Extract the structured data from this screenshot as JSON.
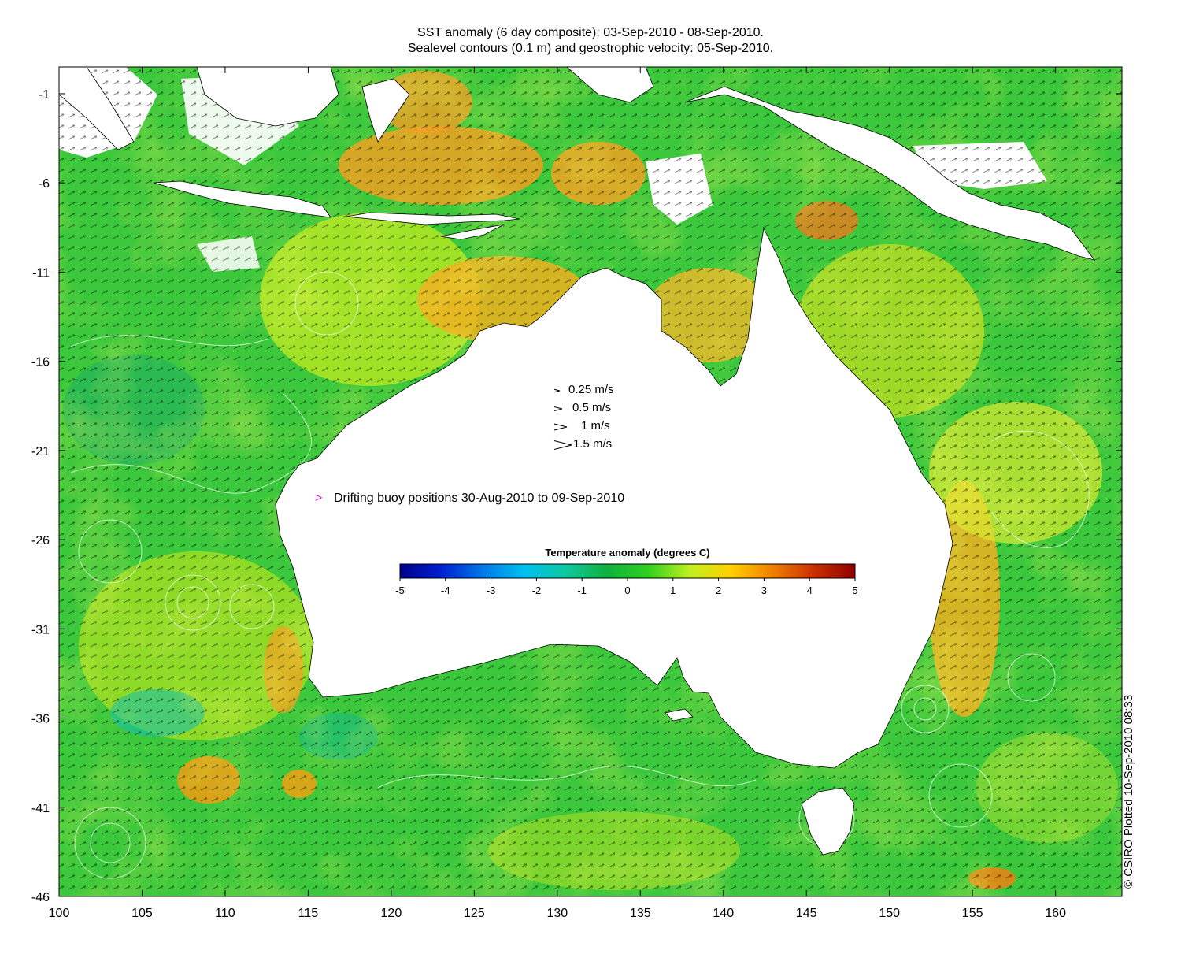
{
  "title": {
    "line1": "SST anomaly (6 day composite): 03-Sep-2010 - 08-Sep-2010.",
    "line2": "Sealevel contours (0.1 m) and geostrophic velocity: 05-Sep-2010."
  },
  "credit": "© CSIRO Plotted 10-Sep-2010 08:33",
  "axes": {
    "lon_ticks": [
      "100",
      "105",
      "110",
      "115",
      "120",
      "125",
      "130",
      "135",
      "140",
      "145",
      "150",
      "155",
      "160"
    ],
    "lat_ticks": [
      "-1",
      "-6",
      "-11",
      "-16",
      "-21",
      "-26",
      "-31",
      "-36",
      "-41",
      "-46"
    ],
    "lon_range": [
      100,
      164
    ],
    "lat_range": [
      -46,
      0.5
    ]
  },
  "velocity_legend": [
    {
      "label": "0.25 m/s",
      "speed": 0.25
    },
    {
      "label": "0.5 m/s",
      "speed": 0.5
    },
    {
      "label": "1 m/s",
      "speed": 1
    },
    {
      "label": "1.5 m/s",
      "speed": 1.5
    }
  ],
  "buoy_legend": {
    "label": "Drifting buoy positions 30-Aug-2010 to 09-Sep-2010",
    "color": "#e020e0"
  },
  "colorbar": {
    "title": "Temperature anomaly (degrees C)",
    "ticks": [
      "-5",
      "-4",
      "-3",
      "-2",
      "-1",
      "0",
      "1",
      "2",
      "3",
      "4",
      "5"
    ],
    "range": [
      -5,
      5
    ],
    "stops": [
      "#00008a",
      "#0020d0",
      "#0078e8",
      "#00c0f0",
      "#10c8a0",
      "#10b040",
      "#30d020",
      "#c0f020",
      "#ffd000",
      "#f08000",
      "#c83000",
      "#900000"
    ]
  },
  "colors": {
    "ocean_base": "#3cc83c",
    "land": "#ffffff",
    "coast": "#000000",
    "contour": "#e8ffe8"
  }
}
